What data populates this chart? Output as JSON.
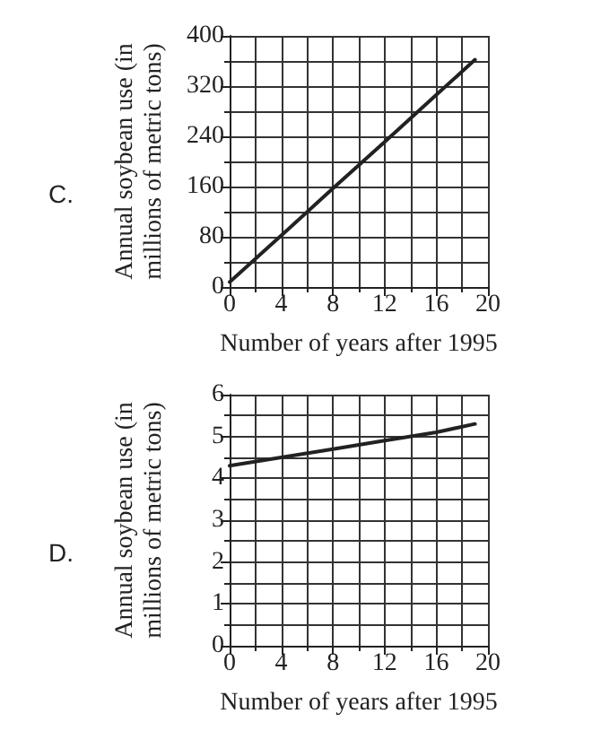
{
  "chart_data": [
    {
      "type": "line",
      "title": "C.",
      "xlabel": "Number of years after 1995",
      "ylabel": "Annual soybean use (in\nmillions of metric tons)",
      "x": [
        0,
        4,
        8,
        12,
        16,
        19
      ],
      "values": [
        8,
        82,
        157,
        231,
        306,
        362
      ],
      "color": "#222222",
      "xlim": [
        0,
        20
      ],
      "ylim": [
        0,
        400
      ],
      "xticks": [
        0,
        4,
        8,
        12,
        16,
        20
      ],
      "yticks": [
        0,
        80,
        160,
        240,
        320,
        400
      ],
      "grid": true,
      "marker": "none"
    },
    {
      "type": "line",
      "title": "D.",
      "xlabel": "Number of years after 1995",
      "ylabel": "Annual soybean use (in\nmillions of metric tons)",
      "x": [
        0,
        4,
        8,
        12,
        16,
        19
      ],
      "values": [
        4.3,
        4.5,
        4.7,
        4.9,
        5.1,
        5.3
      ],
      "color": "#222222",
      "xlim": [
        0,
        20
      ],
      "ylim": [
        0,
        6
      ],
      "xticks": [
        0,
        4,
        8,
        12,
        16,
        20
      ],
      "yticks": [
        0,
        1,
        2,
        3,
        4,
        5,
        6
      ],
      "grid": true,
      "marker": "none"
    }
  ]
}
